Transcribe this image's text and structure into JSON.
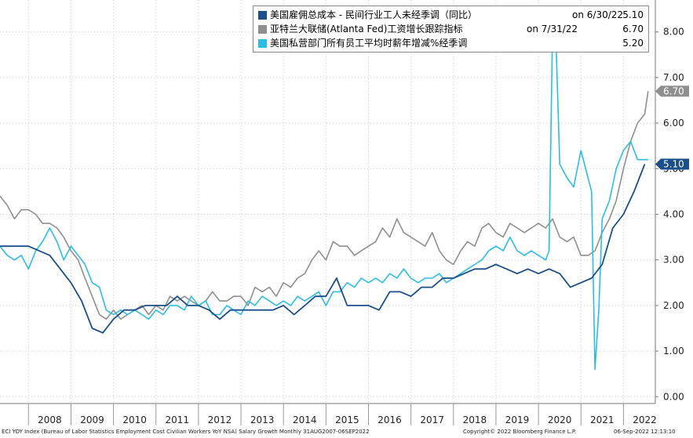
{
  "legend": [
    {
      "name": "美国雇佣总成本 - 民间行业工人未经季调（同比）",
      "date": "on 6/30/22",
      "value": "5.10",
      "color": "#1a4f8b"
    },
    {
      "name": "亚特兰大联储(Atlanta Fed)工资增长跟踪指标",
      "date": "on 7/31/22",
      "value": "6.70",
      "color": "#8f8f8f"
    },
    {
      "name": "美国私营部门所有员工平均时薪年增减%经季调",
      "date": "",
      "value": "5.20",
      "color": "#2bbde6"
    }
  ],
  "footer": {
    "source": "ECI YOY Index (Bureau of Labor Statistics Employment Cost Civilian Workers YoY NSA) Salary Growth  Monthly 31AUG2007-06SEP2022",
    "copyright": "Copyright© 2022 Bloomberg Finance L.P.",
    "timestamp": "06-Sep-2022 12:13:10"
  },
  "end_labels": [
    {
      "text": "6.70",
      "color": "#8f8f8f",
      "value": 6.7
    },
    {
      "text": "5.10",
      "color": "#1a4f8b",
      "value": 5.1
    }
  ],
  "chart_data": {
    "type": "line",
    "x_tick_labels": [
      "2008",
      "2009",
      "2010",
      "2011",
      "2012",
      "2013",
      "2014",
      "2015",
      "2016",
      "2017",
      "2018",
      "2019",
      "2020",
      "2021",
      "2022"
    ],
    "y_tick_labels": [
      "0.00",
      "1.00",
      "2.00",
      "3.00",
      "4.00",
      "5.00",
      "6.00",
      "7.00",
      "8.00"
    ],
    "ylim": [
      -0.15,
      8.7
    ],
    "xlim": [
      2007.33,
      2022.75
    ],
    "grid": true,
    "legend_position": "top-right",
    "series": [
      {
        "name": "美国雇佣总成本 - 民间行业工人未经季调（同比）",
        "color": "#1a4f8b",
        "width": 1.8,
        "x": [
          2007.33,
          2008.0,
          2008.5,
          2009.0,
          2009.25,
          2009.5,
          2009.75,
          2010.0,
          2010.25,
          2010.5,
          2010.75,
          2011.0,
          2011.25,
          2011.5,
          2011.75,
          2012.0,
          2012.25,
          2012.5,
          2012.75,
          2013.0,
          2013.25,
          2013.5,
          2013.75,
          2014.0,
          2014.25,
          2014.5,
          2014.75,
          2015.0,
          2015.25,
          2015.5,
          2015.75,
          2016.0,
          2016.25,
          2016.5,
          2016.75,
          2017.0,
          2017.25,
          2017.5,
          2017.75,
          2018.0,
          2018.25,
          2018.5,
          2018.75,
          2019.0,
          2019.25,
          2019.5,
          2019.75,
          2020.0,
          2020.25,
          2020.5,
          2020.75,
          2021.0,
          2021.25,
          2021.5,
          2021.75,
          2022.0,
          2022.25,
          2022.5
        ],
        "y": [
          3.3,
          3.3,
          3.1,
          2.5,
          2.1,
          1.5,
          1.4,
          1.7,
          1.9,
          1.9,
          2.0,
          2.0,
          2.0,
          2.2,
          2.0,
          2.0,
          1.9,
          1.7,
          1.9,
          1.9,
          1.9,
          1.9,
          1.9,
          2.0,
          1.8,
          2.0,
          2.2,
          2.2,
          2.6,
          2.0,
          2.0,
          2.0,
          1.9,
          2.3,
          2.3,
          2.2,
          2.4,
          2.4,
          2.6,
          2.6,
          2.7,
          2.8,
          2.8,
          2.9,
          2.8,
          2.7,
          2.8,
          2.7,
          2.8,
          2.7,
          2.4,
          2.5,
          2.6,
          2.9,
          3.7,
          4.0,
          4.5,
          5.1
        ]
      },
      {
        "name": "亚特兰大联储(Atlanta Fed)工资增长跟踪指标",
        "color": "#8f8f8f",
        "width": 1.6,
        "x": [
          2007.33,
          2007.5,
          2007.67,
          2007.83,
          2008.0,
          2008.17,
          2008.33,
          2008.5,
          2008.67,
          2008.83,
          2009.0,
          2009.17,
          2009.33,
          2009.5,
          2009.67,
          2009.83,
          2010.0,
          2010.17,
          2010.33,
          2010.5,
          2010.67,
          2010.83,
          2011.0,
          2011.17,
          2011.33,
          2011.5,
          2011.67,
          2011.83,
          2012.0,
          2012.17,
          2012.33,
          2012.5,
          2012.67,
          2012.83,
          2013.0,
          2013.17,
          2013.33,
          2013.5,
          2013.67,
          2013.83,
          2014.0,
          2014.17,
          2014.33,
          2014.5,
          2014.67,
          2014.83,
          2015.0,
          2015.17,
          2015.33,
          2015.5,
          2015.67,
          2015.83,
          2016.0,
          2016.17,
          2016.33,
          2016.5,
          2016.67,
          2016.83,
          2017.0,
          2017.17,
          2017.33,
          2017.5,
          2017.67,
          2017.83,
          2018.0,
          2018.17,
          2018.33,
          2018.5,
          2018.67,
          2018.83,
          2019.0,
          2019.17,
          2019.33,
          2019.5,
          2019.67,
          2019.83,
          2020.0,
          2020.17,
          2020.33,
          2020.5,
          2020.67,
          2020.83,
          2021.0,
          2021.17,
          2021.33,
          2021.5,
          2021.67,
          2021.83,
          2022.0,
          2022.17,
          2022.33,
          2022.5,
          2022.58
        ],
        "y": [
          4.4,
          4.2,
          3.9,
          4.1,
          4.1,
          4.0,
          3.8,
          3.8,
          3.7,
          3.5,
          3.2,
          3.0,
          2.6,
          2.2,
          1.8,
          1.7,
          1.9,
          1.7,
          1.8,
          1.9,
          2.0,
          1.8,
          2.0,
          1.9,
          2.2,
          2.1,
          2.2,
          2.1,
          2.0,
          2.1,
          2.3,
          2.1,
          2.1,
          2.2,
          2.2,
          2.0,
          2.4,
          2.3,
          2.4,
          2.2,
          2.5,
          2.4,
          2.6,
          2.7,
          3.0,
          3.2,
          3.0,
          3.4,
          3.3,
          3.3,
          3.1,
          3.2,
          3.3,
          3.4,
          3.7,
          3.5,
          3.9,
          3.6,
          3.5,
          3.4,
          3.3,
          3.6,
          3.2,
          3.0,
          2.9,
          3.2,
          3.4,
          3.3,
          3.7,
          3.8,
          3.6,
          3.5,
          3.8,
          3.7,
          3.6,
          3.7,
          3.8,
          3.7,
          3.9,
          3.5,
          3.4,
          3.5,
          3.1,
          3.1,
          3.2,
          3.6,
          3.9,
          4.3,
          5.0,
          5.6,
          6.0,
          6.2,
          6.7
        ]
      },
      {
        "name": "美国私营部门所有员工平均时薪年增减%经季调",
        "color": "#2bbde6",
        "width": 1.6,
        "x": [
          2007.33,
          2007.5,
          2007.67,
          2007.83,
          2008.0,
          2008.17,
          2008.33,
          2008.5,
          2008.67,
          2008.83,
          2009.0,
          2009.17,
          2009.33,
          2009.5,
          2009.67,
          2009.83,
          2010.0,
          2010.17,
          2010.33,
          2010.5,
          2010.67,
          2010.83,
          2011.0,
          2011.17,
          2011.33,
          2011.5,
          2011.67,
          2011.83,
          2012.0,
          2012.17,
          2012.33,
          2012.5,
          2012.67,
          2012.83,
          2013.0,
          2013.17,
          2013.33,
          2013.5,
          2013.67,
          2013.83,
          2014.0,
          2014.17,
          2014.33,
          2014.5,
          2014.67,
          2014.83,
          2015.0,
          2015.17,
          2015.33,
          2015.5,
          2015.67,
          2015.83,
          2016.0,
          2016.17,
          2016.33,
          2016.5,
          2016.67,
          2016.83,
          2017.0,
          2017.17,
          2017.33,
          2017.5,
          2017.67,
          2017.83,
          2018.0,
          2018.17,
          2018.33,
          2018.5,
          2018.67,
          2018.83,
          2019.0,
          2019.17,
          2019.33,
          2019.5,
          2019.67,
          2019.83,
          2020.0,
          2020.17,
          2020.25,
          2020.33,
          2020.42,
          2020.5,
          2020.67,
          2020.83,
          2021.0,
          2021.25,
          2021.33,
          2021.42,
          2021.5,
          2021.67,
          2021.83,
          2022.0,
          2022.17,
          2022.33,
          2022.5,
          2022.58
        ],
        "y": [
          3.3,
          3.1,
          3.0,
          3.1,
          2.8,
          3.2,
          3.4,
          3.7,
          3.4,
          3.0,
          3.3,
          3.1,
          2.9,
          2.5,
          2.4,
          1.9,
          1.8,
          1.9,
          1.8,
          1.9,
          1.8,
          1.7,
          1.9,
          1.8,
          2.0,
          2.0,
          1.9,
          2.2,
          2.0,
          2.1,
          1.8,
          1.8,
          2.0,
          1.9,
          1.8,
          2.1,
          2.0,
          2.2,
          2.1,
          2.0,
          2.1,
          2.0,
          2.2,
          2.1,
          2.2,
          2.3,
          2.0,
          2.3,
          2.3,
          2.5,
          2.4,
          2.6,
          2.5,
          2.6,
          2.5,
          2.7,
          2.6,
          2.8,
          2.6,
          2.5,
          2.6,
          2.6,
          2.7,
          2.5,
          2.6,
          2.7,
          2.8,
          2.9,
          3.0,
          3.2,
          3.3,
          3.2,
          3.5,
          3.2,
          3.1,
          3.2,
          3.1,
          3.0,
          3.2,
          8.0,
          7.6,
          5.1,
          4.8,
          4.6,
          5.4,
          4.5,
          0.6,
          1.9,
          3.9,
          4.3,
          5.0,
          5.4,
          5.6,
          5.2,
          5.2,
          5.2
        ]
      }
    ]
  }
}
